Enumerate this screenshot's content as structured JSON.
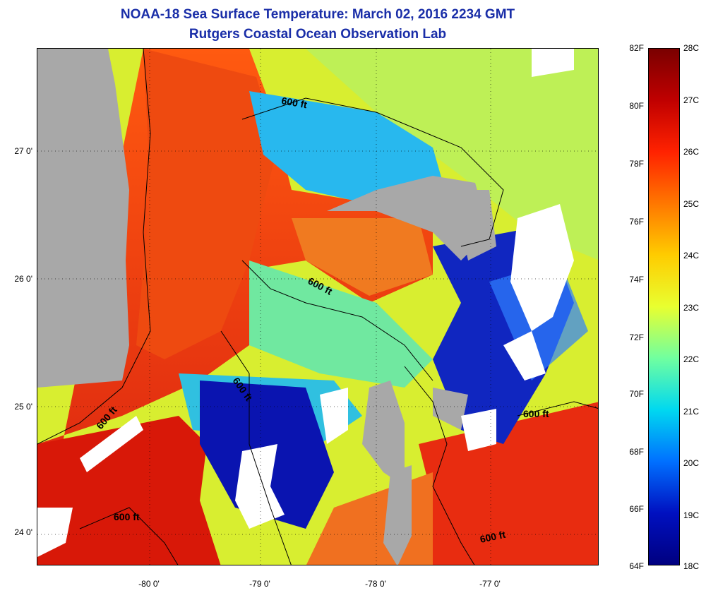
{
  "title_line1": "NOAA-18 Sea Surface Temperature:  March 02, 2016 2234 GMT",
  "title_line2": "Rutgers Coastal Ocean Observation Lab",
  "lat_labels": [
    "27 0'",
    "26 0'",
    "25 0'",
    "24 0'"
  ],
  "lon_labels": [
    "-80 0'",
    "-79 0'",
    "-78 0'",
    "-77 0'"
  ],
  "contour_label": "600 ft",
  "colorbar": {
    "fahrenheit": [
      "82F",
      "80F",
      "78F",
      "76F",
      "74F",
      "72F",
      "70F",
      "68F",
      "66F",
      "64F"
    ],
    "celsius": [
      "28C",
      "27C",
      "26C",
      "25C",
      "24C",
      "23C",
      "22C",
      "21C",
      "20C",
      "19C",
      "18C"
    ],
    "colors": [
      "#7a0000",
      "#c00000",
      "#ff2200",
      "#ff7700",
      "#ffcc00",
      "#e8ff30",
      "#70ffa0",
      "#00d8f0",
      "#0070ff",
      "#0010c0",
      "#000080"
    ]
  },
  "colors": {
    "land": "#a8a8a8",
    "cloud": "#ffffff",
    "warm": "#e83a10",
    "mid": "#f0e030",
    "cool": "#20c0e0",
    "cold": "#0a14b0"
  }
}
